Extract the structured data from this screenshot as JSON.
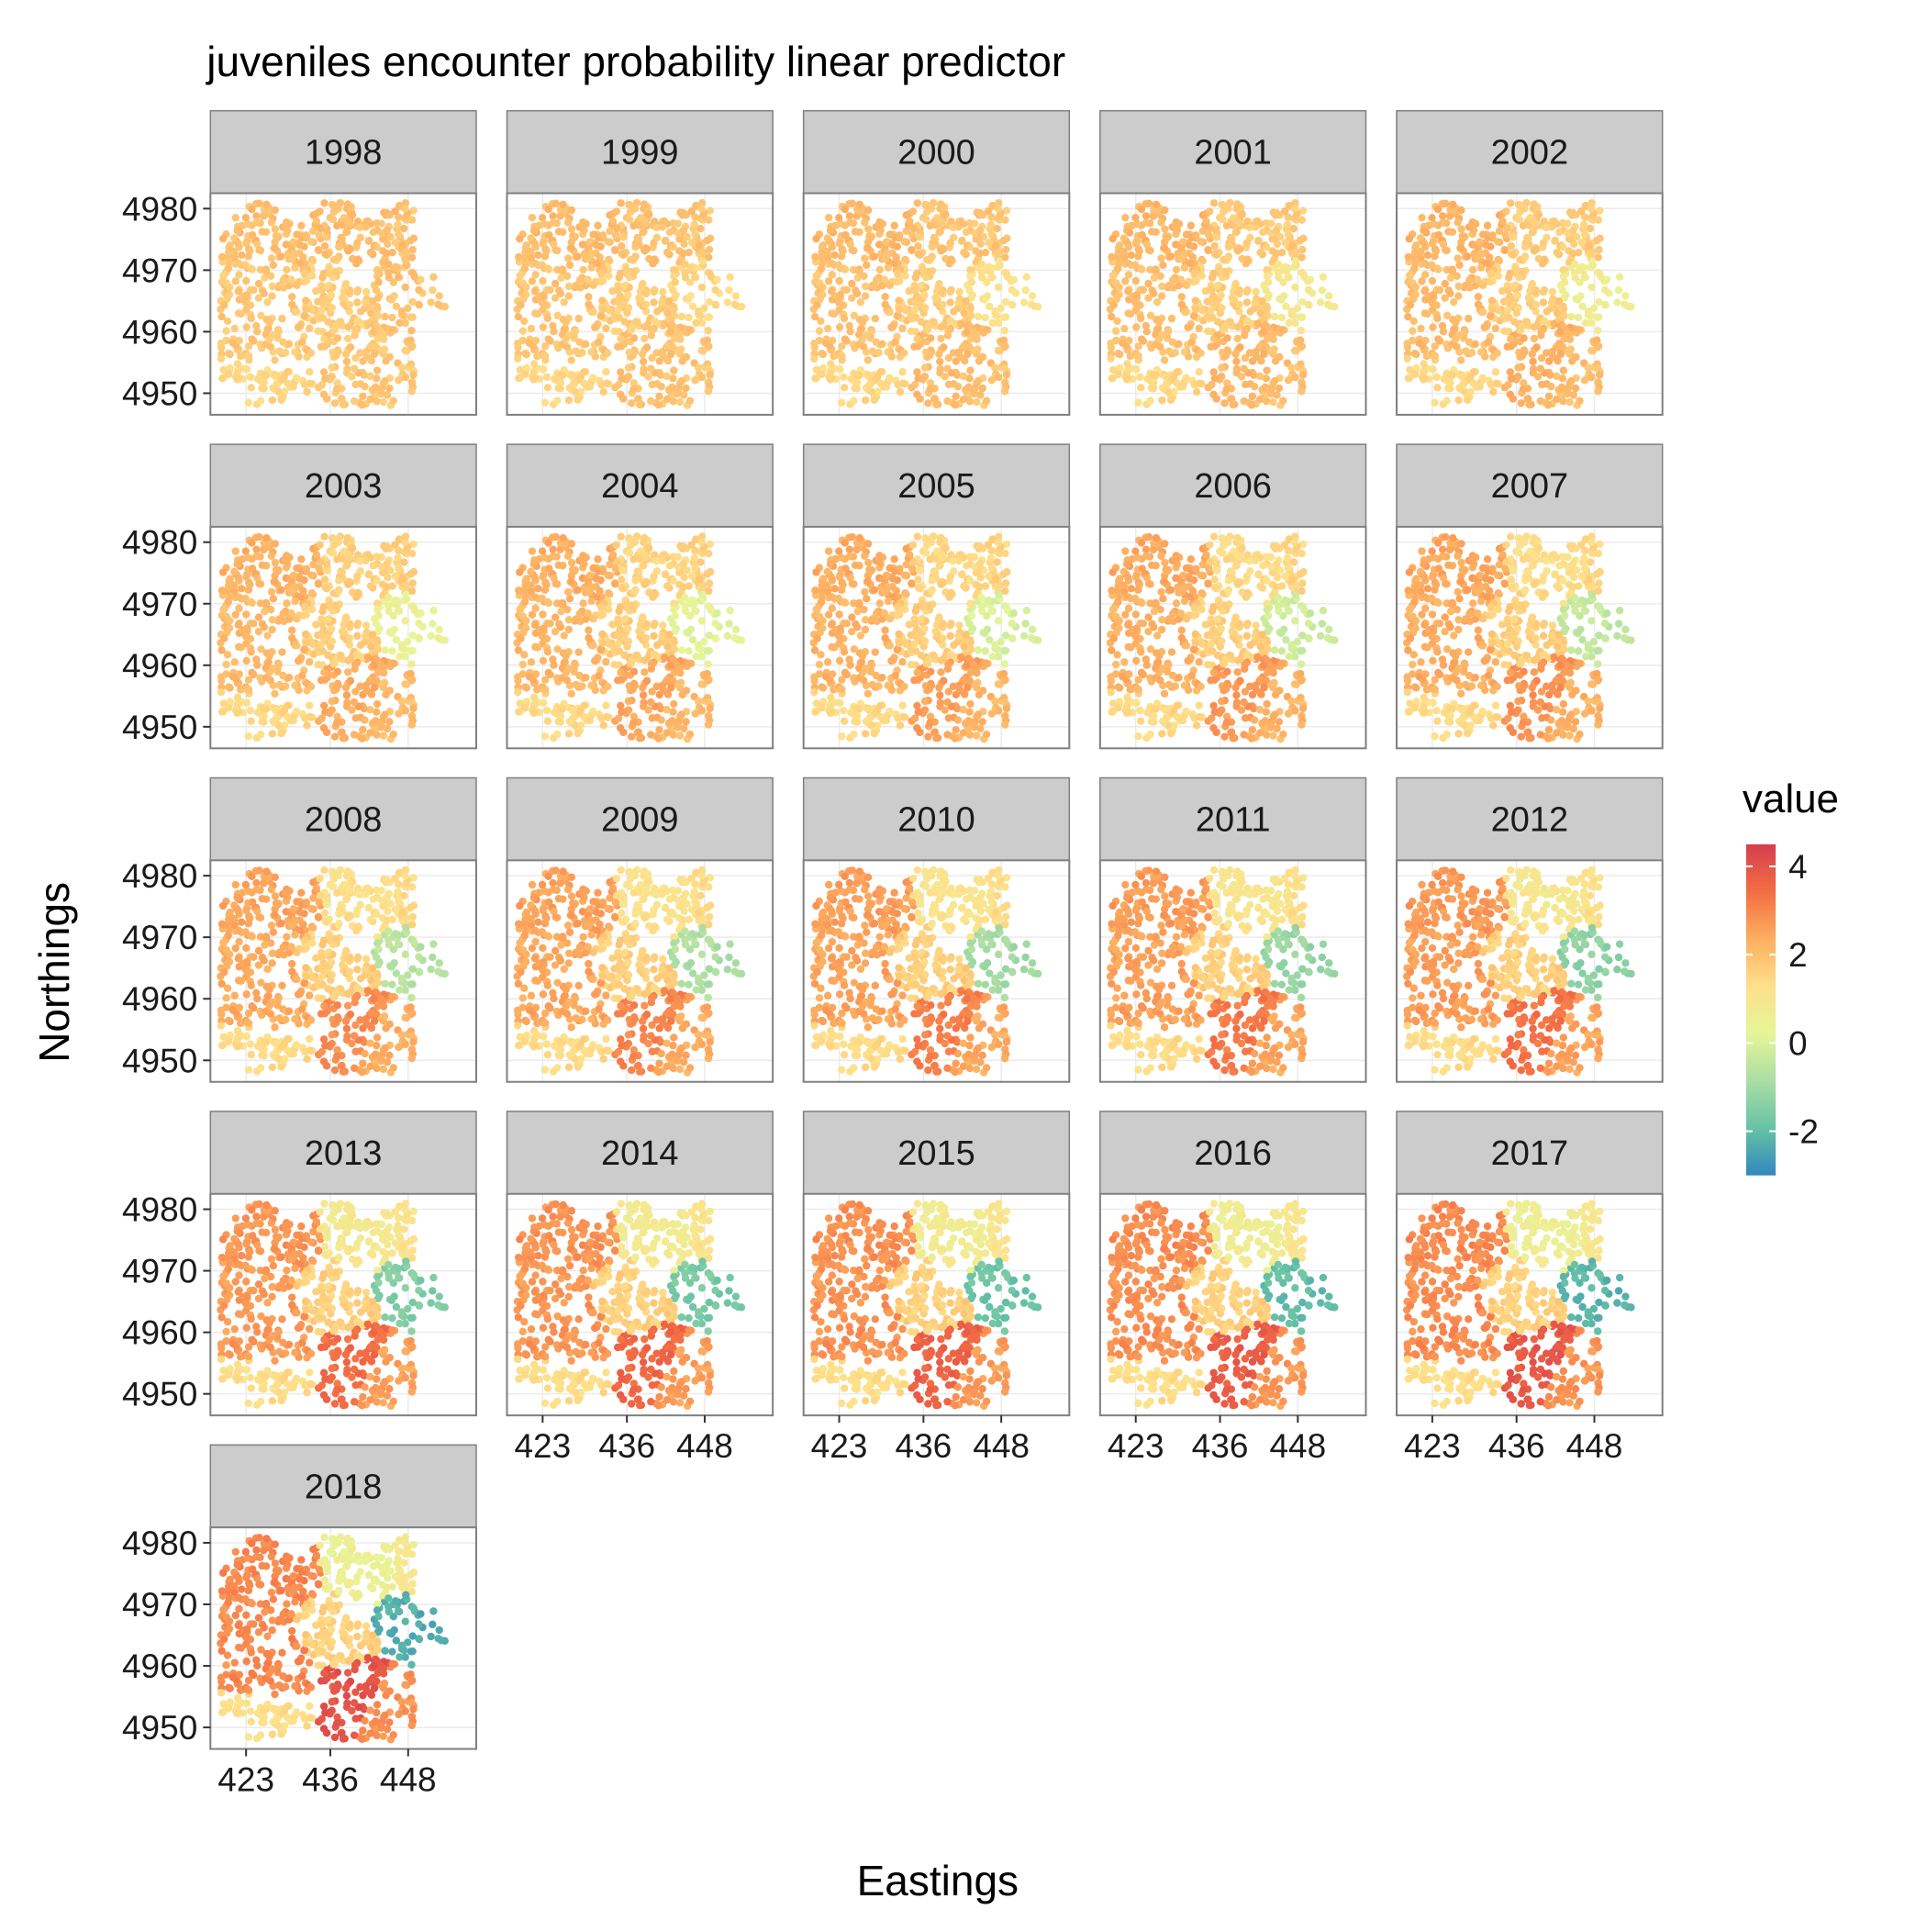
{
  "chart_data": {
    "type": "scatter",
    "title": "juveniles encounter probability linear predictor",
    "xlabel": "Eastings",
    "ylabel": "Northings",
    "facets": [
      "1998",
      "1999",
      "2000",
      "2001",
      "2002",
      "2003",
      "2004",
      "2005",
      "2006",
      "2007",
      "2008",
      "2009",
      "2010",
      "2011",
      "2012",
      "2013",
      "2014",
      "2015",
      "2016",
      "2017",
      "2018"
    ],
    "x_ticks": [
      "423",
      "436",
      "448"
    ],
    "x_tick_values": [
      423,
      436,
      448
    ],
    "y_ticks": [
      "4950",
      "4960",
      "4970",
      "4980"
    ],
    "y_tick_values": [
      4950,
      4960,
      4970,
      4980
    ],
    "xlim": [
      417.5,
      458.5
    ],
    "ylim": [
      4946.5,
      4982.5
    ],
    "legend": {
      "title": "value",
      "position": "right",
      "ticks": [
        "4",
        "2",
        "0",
        "-2"
      ],
      "tick_values": [
        4,
        2,
        0,
        -2
      ],
      "range": [
        -3,
        4.5
      ],
      "colors": [
        "#3288bd",
        "#66c2a5",
        "#abdda4",
        "#e6f598",
        "#fee08b",
        "#fdae61",
        "#f46d43",
        "#d53e4f"
      ]
    },
    "grid": true,
    "region_values_by_year": {
      "1998": {
        "NW": 2.0,
        "W": 1.8,
        "N": 2.0,
        "NE": 1.9,
        "E": 1.9,
        "SW": 1.8,
        "C": 1.7,
        "S": 1.8,
        "SE": 1.8,
        "SSW": 1.5
      },
      "2018": {
        "NW": 3.0,
        "W": 2.9,
        "N": 0.5,
        "NE": 0.9,
        "E": -2.3,
        "SW": 3.0,
        "C": 1.6,
        "S": 4.0,
        "SE": 2.8,
        "SSW": 1.3
      }
    }
  },
  "colors": {
    "strip_fill": "#cccccc",
    "panel_border": "#7f7f7f",
    "grid": "#ebebeb"
  }
}
